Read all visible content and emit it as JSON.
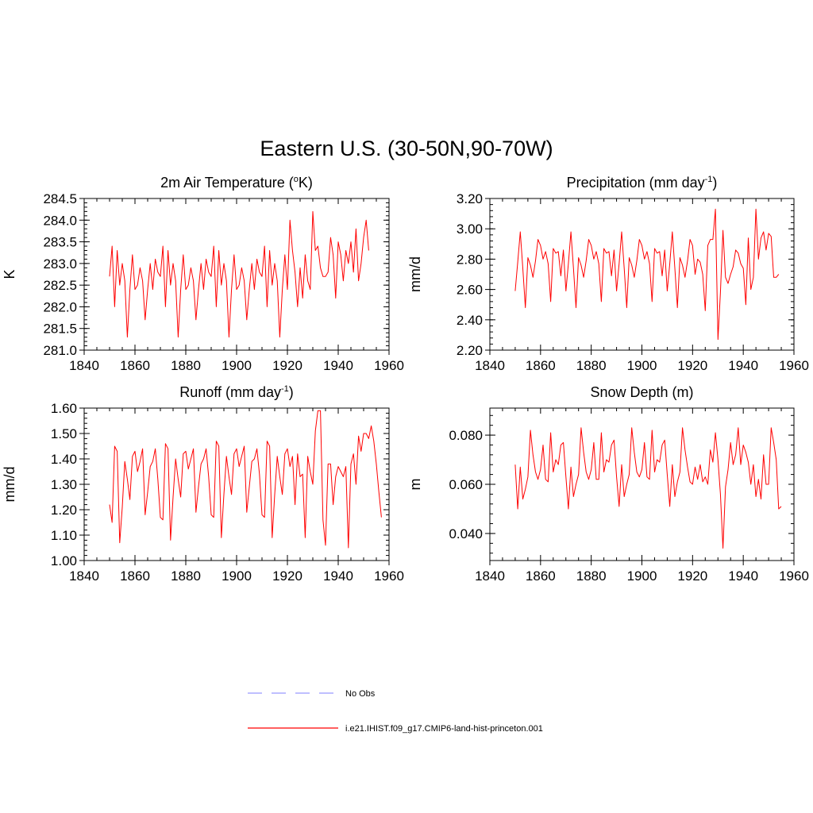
{
  "title": "Eastern U.S. (30-50N,90-70W)",
  "colors": {
    "model": "#ff0000",
    "obs": "#9999ff",
    "axis": "#000000"
  },
  "legend": {
    "obs_label": "No Obs",
    "model_label": "i.e21.IHIST.f09_g17.CMIP6-land-hist-princeton.001"
  },
  "chart_data": [
    {
      "type": "line",
      "title": "2m Air Temperature (°K)",
      "title_base": "2m Air Temperature (",
      "title_sup": "o",
      "title_after": "K)",
      "ylabel": "K",
      "xlim": [
        1840,
        1960
      ],
      "ylim": [
        281.0,
        284.5
      ],
      "xticks": [
        1840,
        1860,
        1880,
        1900,
        1920,
        1940,
        1960
      ],
      "yticks": [
        281.0,
        281.5,
        282.0,
        282.5,
        283.0,
        283.5,
        284.0,
        284.5
      ],
      "ytick_decimals": 1,
      "series": [
        {
          "x0": 1850,
          "dx": 1,
          "values": [
            282.7,
            283.4,
            282.0,
            283.3,
            282.5,
            283.0,
            282.6,
            281.3,
            282.4,
            283.2,
            282.4,
            282.5,
            282.9,
            282.6,
            281.7,
            282.4,
            283.0,
            282.4,
            283.1,
            282.8,
            282.7,
            283.4,
            282.0,
            283.3,
            282.5,
            283.0,
            282.6,
            281.3,
            282.4,
            283.2,
            282.4,
            282.5,
            282.9,
            282.6,
            281.7,
            282.4,
            283.0,
            282.4,
            283.1,
            282.8,
            282.7,
            283.4,
            282.0,
            283.3,
            282.5,
            283.0,
            282.6,
            281.3,
            282.4,
            283.2,
            282.4,
            282.5,
            282.9,
            282.6,
            281.7,
            282.4,
            283.0,
            282.4,
            283.1,
            282.8,
            282.7,
            283.4,
            282.0,
            283.3,
            282.5,
            283.0,
            282.6,
            281.3,
            282.4,
            283.2,
            282.4,
            284.0,
            283.3,
            282.8,
            282.0,
            282.9,
            282.2,
            283.2,
            282.6,
            282.4,
            284.2,
            283.3,
            283.4,
            282.9,
            282.7,
            282.7,
            282.8,
            283.6,
            283.2,
            282.2,
            283.5,
            283.2,
            282.6,
            283.3,
            283.0,
            283.5,
            282.8,
            283.8,
            282.6,
            283.0,
            283.6,
            284.0,
            283.3
          ]
        }
      ]
    },
    {
      "type": "line",
      "title": "Precipitation (mm day-1)",
      "title_base": "Precipitation (mm day",
      "title_sup": "-1",
      "title_after": ")",
      "ylabel": "mm/d",
      "xlim": [
        1840,
        1960
      ],
      "ylim": [
        2.2,
        3.2
      ],
      "xticks": [
        1840,
        1860,
        1880,
        1900,
        1920,
        1940,
        1960
      ],
      "yticks": [
        2.2,
        2.4,
        2.6,
        2.8,
        3.0,
        3.2
      ],
      "ytick_decimals": 2,
      "series": [
        {
          "x0": 1850,
          "dx": 1,
          "values": [
            2.59,
            2.78,
            2.98,
            2.74,
            2.48,
            2.81,
            2.76,
            2.68,
            2.79,
            2.93,
            2.89,
            2.8,
            2.85,
            2.77,
            2.52,
            2.87,
            2.84,
            2.85,
            2.69,
            2.86,
            2.59,
            2.77,
            2.98,
            2.74,
            2.48,
            2.81,
            2.76,
            2.68,
            2.79,
            2.93,
            2.89,
            2.8,
            2.85,
            2.77,
            2.52,
            2.87,
            2.84,
            2.85,
            2.69,
            2.86,
            2.59,
            2.77,
            2.98,
            2.74,
            2.48,
            2.81,
            2.76,
            2.68,
            2.79,
            2.93,
            2.89,
            2.8,
            2.85,
            2.77,
            2.52,
            2.87,
            2.84,
            2.85,
            2.69,
            2.86,
            2.59,
            2.77,
            2.98,
            2.74,
            2.48,
            2.81,
            2.76,
            2.68,
            2.79,
            2.93,
            2.89,
            2.7,
            2.8,
            2.78,
            2.7,
            2.46,
            2.89,
            2.93,
            2.93,
            3.13,
            2.27,
            2.58,
            2.99,
            2.68,
            2.64,
            2.7,
            2.75,
            2.86,
            2.84,
            2.77,
            2.74,
            2.5,
            2.94,
            2.6,
            2.68,
            3.13,
            2.8,
            2.94,
            2.98,
            2.86,
            2.97,
            2.95,
            2.68,
            2.68,
            2.7
          ]
        }
      ]
    },
    {
      "type": "line",
      "title": "Runoff (mm day-1)",
      "title_base": "Runoff (mm day",
      "title_sup": "-1",
      "title_after": ")",
      "ylabel": "mm/d",
      "xlim": [
        1840,
        1960
      ],
      "ylim": [
        1.0,
        1.6
      ],
      "xticks": [
        1840,
        1860,
        1880,
        1900,
        1920,
        1940,
        1960
      ],
      "yticks": [
        1.0,
        1.1,
        1.2,
        1.3,
        1.4,
        1.5,
        1.6
      ],
      "ytick_decimals": 2,
      "series": [
        {
          "x0": 1850,
          "dx": 1,
          "values": [
            1.22,
            1.15,
            1.45,
            1.43,
            1.07,
            1.21,
            1.39,
            1.32,
            1.24,
            1.41,
            1.43,
            1.35,
            1.39,
            1.44,
            1.18,
            1.27,
            1.37,
            1.39,
            1.44,
            1.32,
            1.17,
            1.16,
            1.46,
            1.44,
            1.08,
            1.25,
            1.4,
            1.32,
            1.25,
            1.42,
            1.43,
            1.36,
            1.4,
            1.44,
            1.19,
            1.29,
            1.38,
            1.4,
            1.44,
            1.33,
            1.18,
            1.17,
            1.47,
            1.45,
            1.09,
            1.26,
            1.41,
            1.33,
            1.26,
            1.42,
            1.44,
            1.37,
            1.41,
            1.45,
            1.19,
            1.29,
            1.39,
            1.4,
            1.44,
            1.34,
            1.18,
            1.17,
            1.47,
            1.45,
            1.09,
            1.26,
            1.41,
            1.33,
            1.26,
            1.42,
            1.44,
            1.37,
            1.41,
            1.22,
            1.42,
            1.33,
            1.34,
            1.09,
            1.41,
            1.35,
            1.3,
            1.51,
            1.59,
            1.59,
            1.16,
            1.06,
            1.38,
            1.38,
            1.22,
            1.33,
            1.37,
            1.35,
            1.33,
            1.37,
            1.05,
            1.38,
            1.42,
            1.3,
            1.49,
            1.43,
            1.5,
            1.5,
            1.48,
            1.53,
            1.47,
            1.38,
            1.27,
            1.17
          ]
        }
      ]
    },
    {
      "type": "line",
      "title": "Snow Depth (m)",
      "title_base": "Snow Depth (m)",
      "title_sup": "",
      "title_after": "",
      "ylabel": "m",
      "xlim": [
        1840,
        1960
      ],
      "ylim": [
        0.029,
        0.091
      ],
      "xticks": [
        1840,
        1860,
        1880,
        1900,
        1920,
        1940,
        1960
      ],
      "yticks": [
        0.04,
        0.06,
        0.08
      ],
      "ytick_decimals": 3,
      "series": [
        {
          "x0": 1850,
          "dx": 1,
          "values": [
            0.068,
            0.05,
            0.067,
            0.054,
            0.058,
            0.063,
            0.082,
            0.072,
            0.065,
            0.062,
            0.066,
            0.076,
            0.062,
            0.061,
            0.081,
            0.065,
            0.07,
            0.068,
            0.076,
            0.077,
            0.063,
            0.05,
            0.067,
            0.055,
            0.06,
            0.064,
            0.083,
            0.073,
            0.065,
            0.062,
            0.066,
            0.077,
            0.062,
            0.062,
            0.081,
            0.065,
            0.07,
            0.069,
            0.076,
            0.078,
            0.063,
            0.051,
            0.068,
            0.055,
            0.06,
            0.064,
            0.083,
            0.073,
            0.065,
            0.063,
            0.066,
            0.077,
            0.063,
            0.062,
            0.082,
            0.065,
            0.07,
            0.069,
            0.076,
            0.078,
            0.064,
            0.051,
            0.068,
            0.055,
            0.061,
            0.065,
            0.083,
            0.074,
            0.067,
            0.061,
            0.06,
            0.067,
            0.062,
            0.068,
            0.061,
            0.063,
            0.06,
            0.074,
            0.069,
            0.081,
            0.07,
            0.056,
            0.034,
            0.059,
            0.066,
            0.077,
            0.068,
            0.072,
            0.083,
            0.068,
            0.076,
            0.073,
            0.069,
            0.06,
            0.068,
            0.055,
            0.062,
            0.054,
            0.072,
            0.06,
            0.06,
            0.083,
            0.077,
            0.07,
            0.05,
            0.051
          ]
        }
      ]
    }
  ]
}
